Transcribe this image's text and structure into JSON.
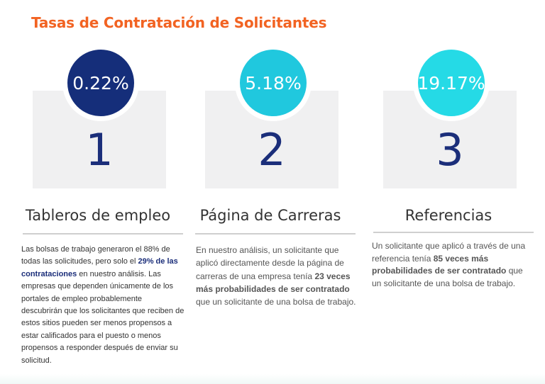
{
  "title": "Tasas de Contratación de Solicitantes",
  "columns": [
    {
      "rate": "0.22%",
      "number": "1",
      "label": "Tableros de empleo",
      "desc_1": "Las bolsas de trabajo generaron el 88% de todas las solicitudes, pero solo el ",
      "desc_bold": "29% de las contrataciones",
      "desc_2": " en nuestro análisis. Las empresas que dependen únicamente de los portales de empleo probablemente descubrirán que los solicitantes que reciben de estos sitios pueden ser menos propensos a estar calificados para el puesto o menos propensos a responder después de enviar su solicitud.",
      "circle_color": "#152e7a"
    },
    {
      "rate": "5.18%",
      "number": "2",
      "label": "Página de Carreras",
      "desc_1": "En nuestro análisis, un solicitante que aplicó directamente desde la página de carreras de una empresa tenía ",
      "desc_bold": "23 veces más probabilidades de ser contratado",
      "desc_2": " que un solicitante de una bolsa de trabajo.",
      "circle_color": "#20c8de"
    },
    {
      "rate": "19.17%",
      "number": "3",
      "label": "Referencias",
      "desc_1": "Un solicitante que aplicó a través de una referencia tenía ",
      "desc_bold": "85 veces más probabilidades de ser contratado",
      "desc_2": " que un solicitante de una bolsa de trabajo.",
      "circle_color": "#25dae6"
    }
  ],
  "colors": {
    "title": "#f26322",
    "number": "#1b2e7a",
    "panel": "#f0f0f1"
  }
}
